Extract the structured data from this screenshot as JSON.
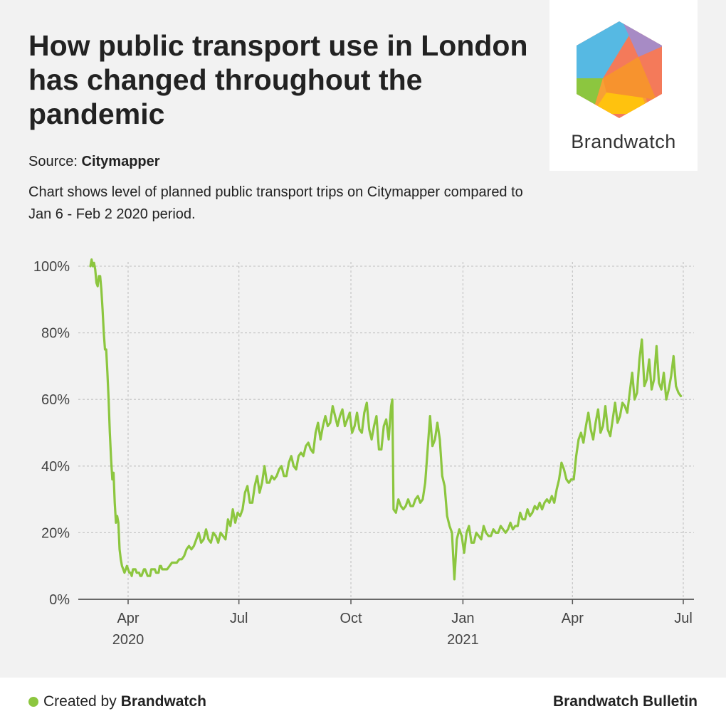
{
  "header": {
    "title": "How public transport use in London has changed throughout the pandemic",
    "source_label": "Source:",
    "source_name": "Citymapper",
    "subtitle": "Chart shows level of planned public transport trips on Citymapper compared to Jan 6 - Feb 2 2020 period."
  },
  "logo": {
    "text": "Brandwatch"
  },
  "footer": {
    "created_by_label": "Created by",
    "created_by_name": "Brandwatch",
    "right_text": "Brandwatch Bulletin"
  },
  "colors": {
    "line": "#8cc63f",
    "grid": "#c8c8c8",
    "axis": "#555555"
  },
  "chart_data": {
    "type": "line",
    "title": "",
    "xlabel": "",
    "ylabel": "",
    "ylim": [
      0,
      100
    ],
    "y_ticks": [
      "0%",
      "20%",
      "40%",
      "60%",
      "80%",
      "100%"
    ],
    "x_ticks": [
      {
        "label": "Apr",
        "sub": "2020",
        "x": "2020-04-01"
      },
      {
        "label": "Jul",
        "sub": "",
        "x": "2020-07-01"
      },
      {
        "label": "Oct",
        "sub": "",
        "x": "2020-10-01"
      },
      {
        "label": "Jan",
        "sub": "2021",
        "x": "2021-01-01"
      },
      {
        "label": "Apr",
        "sub": "",
        "x": "2021-04-01"
      },
      {
        "label": "Jul",
        "sub": "",
        "x": "2021-07-01"
      }
    ],
    "grid": true,
    "series": [
      {
        "name": "",
        "color": "#8cc63f",
        "points": [
          [
            "2020-03-01",
            100
          ],
          [
            "2020-03-02",
            102
          ],
          [
            "2020-03-03",
            100
          ],
          [
            "2020-03-04",
            101
          ],
          [
            "2020-03-05",
            99
          ],
          [
            "2020-03-06",
            95
          ],
          [
            "2020-03-07",
            94
          ],
          [
            "2020-03-08",
            97
          ],
          [
            "2020-03-09",
            97
          ],
          [
            "2020-03-10",
            93
          ],
          [
            "2020-03-11",
            87
          ],
          [
            "2020-03-12",
            80
          ],
          [
            "2020-03-13",
            75
          ],
          [
            "2020-03-14",
            75
          ],
          [
            "2020-03-15",
            68
          ],
          [
            "2020-03-16",
            60
          ],
          [
            "2020-03-17",
            50
          ],
          [
            "2020-03-18",
            42
          ],
          [
            "2020-03-19",
            36
          ],
          [
            "2020-03-20",
            38
          ],
          [
            "2020-03-21",
            29
          ],
          [
            "2020-03-22",
            23
          ],
          [
            "2020-03-23",
            25
          ],
          [
            "2020-03-24",
            23
          ],
          [
            "2020-03-25",
            15
          ],
          [
            "2020-03-26",
            12
          ],
          [
            "2020-03-27",
            10
          ],
          [
            "2020-03-28",
            9
          ],
          [
            "2020-03-29",
            8
          ],
          [
            "2020-03-30",
            9
          ],
          [
            "2020-03-31",
            10
          ],
          [
            "2020-04-01",
            9
          ],
          [
            "2020-04-02",
            8
          ],
          [
            "2020-04-03",
            8
          ],
          [
            "2020-04-04",
            7
          ],
          [
            "2020-04-05",
            9
          ],
          [
            "2020-04-06",
            9
          ],
          [
            "2020-04-07",
            9
          ],
          [
            "2020-04-08",
            8
          ],
          [
            "2020-04-09",
            8
          ],
          [
            "2020-04-10",
            8
          ],
          [
            "2020-04-11",
            7
          ],
          [
            "2020-04-12",
            7
          ],
          [
            "2020-04-13",
            8
          ],
          [
            "2020-04-14",
            9
          ],
          [
            "2020-04-15",
            9
          ],
          [
            "2020-04-16",
            8
          ],
          [
            "2020-04-17",
            7
          ],
          [
            "2020-04-18",
            7
          ],
          [
            "2020-04-19",
            7
          ],
          [
            "2020-04-20",
            9
          ],
          [
            "2020-04-21",
            9
          ],
          [
            "2020-04-22",
            9
          ],
          [
            "2020-04-23",
            9
          ],
          [
            "2020-04-24",
            8
          ],
          [
            "2020-04-25",
            8
          ],
          [
            "2020-04-26",
            8
          ],
          [
            "2020-04-27",
            10
          ],
          [
            "2020-04-28",
            10
          ],
          [
            "2020-04-29",
            9
          ],
          [
            "2020-04-30",
            9
          ],
          [
            "2020-05-01",
            9
          ],
          [
            "2020-05-03",
            9
          ],
          [
            "2020-05-05",
            10
          ],
          [
            "2020-05-07",
            11
          ],
          [
            "2020-05-09",
            11
          ],
          [
            "2020-05-11",
            11
          ],
          [
            "2020-05-13",
            12
          ],
          [
            "2020-05-15",
            12
          ],
          [
            "2020-05-17",
            13
          ],
          [
            "2020-05-19",
            15
          ],
          [
            "2020-05-21",
            16
          ],
          [
            "2020-05-23",
            15
          ],
          [
            "2020-05-25",
            16
          ],
          [
            "2020-05-27",
            18
          ],
          [
            "2020-05-29",
            20
          ],
          [
            "2020-05-31",
            17
          ],
          [
            "2020-06-02",
            18
          ],
          [
            "2020-06-04",
            21
          ],
          [
            "2020-06-06",
            18
          ],
          [
            "2020-06-08",
            17
          ],
          [
            "2020-06-10",
            20
          ],
          [
            "2020-06-12",
            19
          ],
          [
            "2020-06-14",
            17
          ],
          [
            "2020-06-16",
            20
          ],
          [
            "2020-06-18",
            19
          ],
          [
            "2020-06-20",
            18
          ],
          [
            "2020-06-22",
            24
          ],
          [
            "2020-06-24",
            22
          ],
          [
            "2020-06-26",
            27
          ],
          [
            "2020-06-28",
            23
          ],
          [
            "2020-06-30",
            26
          ],
          [
            "2020-07-02",
            25
          ],
          [
            "2020-07-04",
            27
          ],
          [
            "2020-07-06",
            32
          ],
          [
            "2020-07-08",
            34
          ],
          [
            "2020-07-10",
            29
          ],
          [
            "2020-07-12",
            29
          ],
          [
            "2020-07-14",
            34
          ],
          [
            "2020-07-16",
            37
          ],
          [
            "2020-07-18",
            32
          ],
          [
            "2020-07-20",
            35
          ],
          [
            "2020-07-22",
            40
          ],
          [
            "2020-07-24",
            35
          ],
          [
            "2020-07-26",
            35
          ],
          [
            "2020-07-28",
            37
          ],
          [
            "2020-07-30",
            36
          ],
          [
            "2020-08-01",
            37
          ],
          [
            "2020-08-03",
            39
          ],
          [
            "2020-08-05",
            40
          ],
          [
            "2020-08-07",
            37
          ],
          [
            "2020-08-09",
            37
          ],
          [
            "2020-08-11",
            41
          ],
          [
            "2020-08-13",
            43
          ],
          [
            "2020-08-15",
            40
          ],
          [
            "2020-08-17",
            39
          ],
          [
            "2020-08-19",
            43
          ],
          [
            "2020-08-21",
            44
          ],
          [
            "2020-08-23",
            43
          ],
          [
            "2020-08-25",
            46
          ],
          [
            "2020-08-27",
            47
          ],
          [
            "2020-08-29",
            45
          ],
          [
            "2020-08-31",
            44
          ],
          [
            "2020-09-02",
            50
          ],
          [
            "2020-09-04",
            53
          ],
          [
            "2020-09-06",
            48
          ],
          [
            "2020-09-08",
            52
          ],
          [
            "2020-09-10",
            55
          ],
          [
            "2020-09-12",
            52
          ],
          [
            "2020-09-14",
            53
          ],
          [
            "2020-09-16",
            58
          ],
          [
            "2020-09-18",
            55
          ],
          [
            "2020-09-20",
            52
          ],
          [
            "2020-09-22",
            55
          ],
          [
            "2020-09-24",
            57
          ],
          [
            "2020-09-26",
            52
          ],
          [
            "2020-09-28",
            54
          ],
          [
            "2020-09-30",
            56
          ],
          [
            "2020-10-02",
            50
          ],
          [
            "2020-10-04",
            52
          ],
          [
            "2020-10-06",
            56
          ],
          [
            "2020-10-08",
            51
          ],
          [
            "2020-10-10",
            50
          ],
          [
            "2020-10-12",
            56
          ],
          [
            "2020-10-14",
            59
          ],
          [
            "2020-10-16",
            51
          ],
          [
            "2020-10-18",
            48
          ],
          [
            "2020-10-20",
            52
          ],
          [
            "2020-10-22",
            55
          ],
          [
            "2020-10-24",
            45
          ],
          [
            "2020-10-26",
            45
          ],
          [
            "2020-10-28",
            52
          ],
          [
            "2020-10-30",
            54
          ],
          [
            "2020-11-01",
            48
          ],
          [
            "2020-11-03",
            58
          ],
          [
            "2020-11-04",
            60
          ],
          [
            "2020-11-05",
            27
          ],
          [
            "2020-11-07",
            26
          ],
          [
            "2020-11-09",
            30
          ],
          [
            "2020-11-11",
            28
          ],
          [
            "2020-11-13",
            27
          ],
          [
            "2020-11-15",
            28
          ],
          [
            "2020-11-17",
            30
          ],
          [
            "2020-11-19",
            28
          ],
          [
            "2020-11-21",
            28
          ],
          [
            "2020-11-23",
            30
          ],
          [
            "2020-11-25",
            31
          ],
          [
            "2020-11-27",
            29
          ],
          [
            "2020-11-29",
            30
          ],
          [
            "2020-12-01",
            35
          ],
          [
            "2020-12-03",
            45
          ],
          [
            "2020-12-05",
            55
          ],
          [
            "2020-12-07",
            46
          ],
          [
            "2020-12-09",
            48
          ],
          [
            "2020-12-11",
            53
          ],
          [
            "2020-12-13",
            48
          ],
          [
            "2020-12-15",
            37
          ],
          [
            "2020-12-17",
            34
          ],
          [
            "2020-12-19",
            25
          ],
          [
            "2020-12-21",
            22
          ],
          [
            "2020-12-23",
            20
          ],
          [
            "2020-12-25",
            6
          ],
          [
            "2020-12-27",
            18
          ],
          [
            "2020-12-29",
            21
          ],
          [
            "2020-12-31",
            19
          ],
          [
            "2021-01-02",
            14
          ],
          [
            "2021-01-04",
            20
          ],
          [
            "2021-01-06",
            22
          ],
          [
            "2021-01-08",
            17
          ],
          [
            "2021-01-10",
            17
          ],
          [
            "2021-01-12",
            20
          ],
          [
            "2021-01-14",
            19
          ],
          [
            "2021-01-16",
            18
          ],
          [
            "2021-01-18",
            22
          ],
          [
            "2021-01-20",
            20
          ],
          [
            "2021-01-22",
            19
          ],
          [
            "2021-01-24",
            19
          ],
          [
            "2021-01-26",
            21
          ],
          [
            "2021-01-28",
            20
          ],
          [
            "2021-01-30",
            20
          ],
          [
            "2021-02-01",
            22
          ],
          [
            "2021-02-03",
            21
          ],
          [
            "2021-02-05",
            20
          ],
          [
            "2021-02-07",
            21
          ],
          [
            "2021-02-09",
            23
          ],
          [
            "2021-02-11",
            21
          ],
          [
            "2021-02-13",
            22
          ],
          [
            "2021-02-15",
            22
          ],
          [
            "2021-02-17",
            26
          ],
          [
            "2021-02-19",
            24
          ],
          [
            "2021-02-21",
            24
          ],
          [
            "2021-02-23",
            27
          ],
          [
            "2021-02-25",
            25
          ],
          [
            "2021-02-27",
            26
          ],
          [
            "2021-03-01",
            28
          ],
          [
            "2021-03-03",
            27
          ],
          [
            "2021-03-05",
            29
          ],
          [
            "2021-03-07",
            27
          ],
          [
            "2021-03-09",
            29
          ],
          [
            "2021-03-11",
            30
          ],
          [
            "2021-03-13",
            29
          ],
          [
            "2021-03-15",
            31
          ],
          [
            "2021-03-17",
            29
          ],
          [
            "2021-03-19",
            33
          ],
          [
            "2021-03-21",
            36
          ],
          [
            "2021-03-23",
            41
          ],
          [
            "2021-03-25",
            39
          ],
          [
            "2021-03-27",
            36
          ],
          [
            "2021-03-29",
            35
          ],
          [
            "2021-03-31",
            36
          ],
          [
            "2021-04-02",
            36
          ],
          [
            "2021-04-04",
            43
          ],
          [
            "2021-04-06",
            48
          ],
          [
            "2021-04-08",
            50
          ],
          [
            "2021-04-10",
            47
          ],
          [
            "2021-04-12",
            52
          ],
          [
            "2021-04-14",
            56
          ],
          [
            "2021-04-16",
            51
          ],
          [
            "2021-04-18",
            48
          ],
          [
            "2021-04-20",
            53
          ],
          [
            "2021-04-22",
            57
          ],
          [
            "2021-04-24",
            50
          ],
          [
            "2021-04-26",
            52
          ],
          [
            "2021-04-28",
            58
          ],
          [
            "2021-04-30",
            51
          ],
          [
            "2021-05-02",
            49
          ],
          [
            "2021-05-04",
            54
          ],
          [
            "2021-05-06",
            59
          ],
          [
            "2021-05-08",
            53
          ],
          [
            "2021-05-10",
            55
          ],
          [
            "2021-05-12",
            59
          ],
          [
            "2021-05-14",
            58
          ],
          [
            "2021-05-16",
            56
          ],
          [
            "2021-05-18",
            62
          ],
          [
            "2021-05-20",
            68
          ],
          [
            "2021-05-22",
            60
          ],
          [
            "2021-05-24",
            62
          ],
          [
            "2021-05-26",
            72
          ],
          [
            "2021-05-28",
            78
          ],
          [
            "2021-05-30",
            64
          ],
          [
            "2021-06-01",
            66
          ],
          [
            "2021-06-03",
            72
          ],
          [
            "2021-06-05",
            63
          ],
          [
            "2021-06-07",
            66
          ],
          [
            "2021-06-09",
            76
          ],
          [
            "2021-06-11",
            65
          ],
          [
            "2021-06-13",
            63
          ],
          [
            "2021-06-15",
            68
          ],
          [
            "2021-06-17",
            60
          ],
          [
            "2021-06-19",
            63
          ],
          [
            "2021-06-21",
            67
          ],
          [
            "2021-06-23",
            73
          ],
          [
            "2021-06-25",
            64
          ],
          [
            "2021-06-27",
            62
          ],
          [
            "2021-06-29",
            61
          ]
        ]
      }
    ]
  }
}
